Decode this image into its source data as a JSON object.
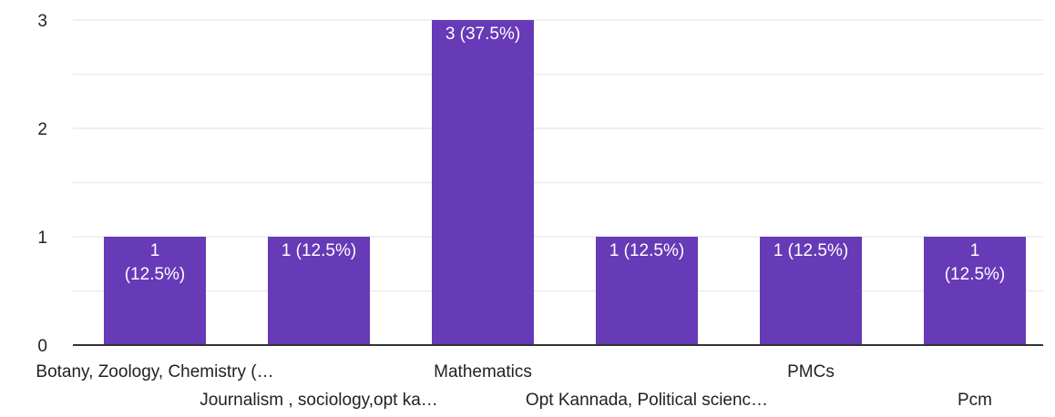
{
  "chart_data": {
    "type": "bar",
    "title": "",
    "xlabel": "",
    "ylabel": "",
    "ylim": [
      0,
      3
    ],
    "yticks": [
      "0",
      "1",
      "2",
      "3"
    ],
    "grid": true,
    "legend": "none",
    "colors": {
      "bar": "#673ab7",
      "grid": "#ebebeb",
      "axis": "#333333",
      "text": "#222222",
      "bar_label": "#ffffff"
    },
    "categories": [
      "Botany, Zoology, Chemistry (…",
      "Journalism , sociology,opt ka…",
      "Mathematics",
      "Opt Kannada, Political scienc…",
      "PMCs",
      "Pcm"
    ],
    "values": [
      1,
      1,
      3,
      1,
      1,
      1
    ],
    "bar_labels": [
      [
        "1",
        "(12.5%)"
      ],
      [
        "1 (12.5%)"
      ],
      [
        "3 (37.5%)"
      ],
      [
        "1 (12.5%)"
      ],
      [
        "1 (12.5%)"
      ],
      [
        "1",
        "(12.5%)"
      ]
    ]
  }
}
